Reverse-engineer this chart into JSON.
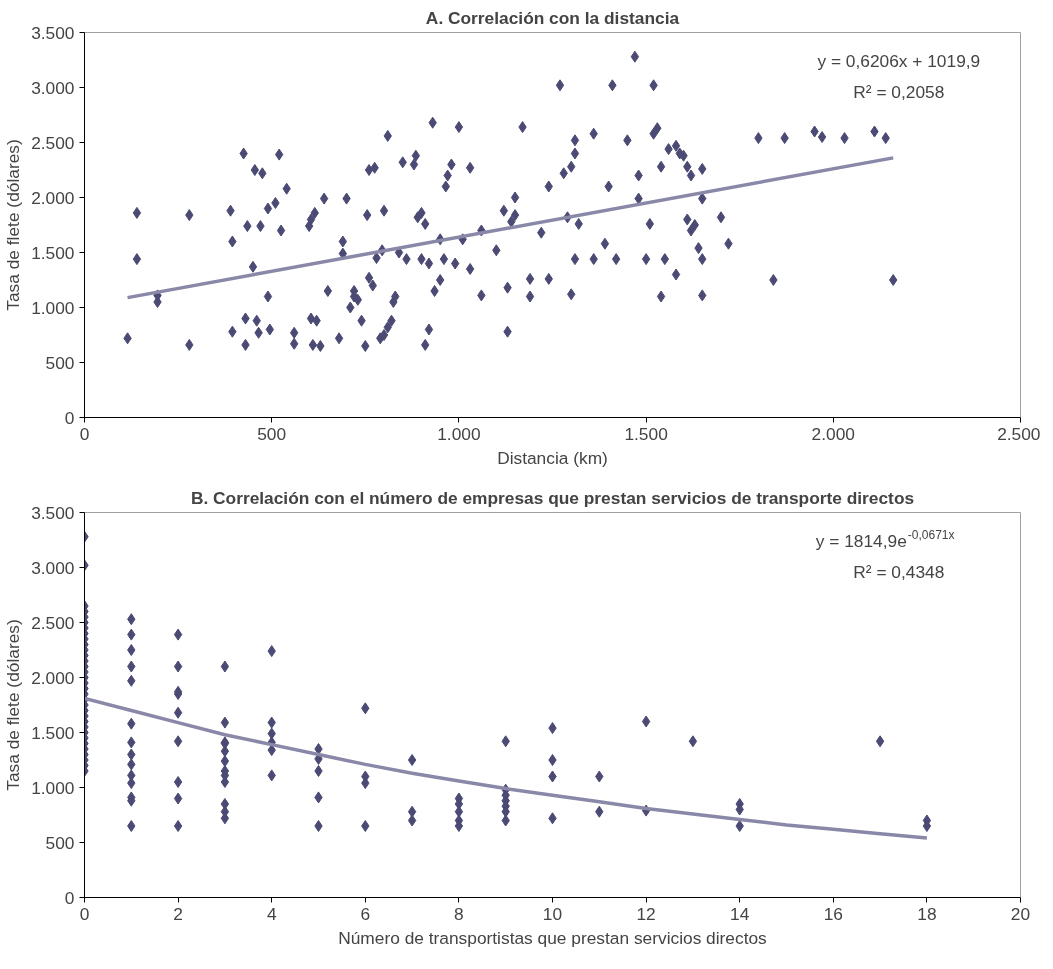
{
  "chart_data": [
    {
      "type": "scatter",
      "title": "A. Correlación con la distancia",
      "xlabel": "Distancia (km)",
      "ylabel": "Tasa de flete (dólares)",
      "xlim": [
        0,
        2500
      ],
      "xticks": [
        0,
        500,
        {
          "value": 1000,
          "label": "1.000"
        },
        {
          "value": 1500,
          "label": "1.500"
        },
        {
          "value": 2000,
          "label": "2.000"
        },
        {
          "value": 2500,
          "label": "2.500"
        }
      ],
      "ylim": [
        0,
        3500
      ],
      "yticks": [
        0,
        500,
        {
          "value": 1000,
          "label": "1.000"
        },
        {
          "value": 1500,
          "label": "1.500"
        },
        {
          "value": 2000,
          "label": "2.000"
        },
        {
          "value": 2500,
          "label": "2.500"
        },
        {
          "value": 3000,
          "label": "3.000"
        },
        {
          "value": 3500,
          "label": "3.500"
        }
      ],
      "grid": false,
      "annotations": [
        "y = 0,6206x + 1019,9",
        "R² = 0,2058"
      ],
      "series": [
        {
          "marker": "diamond",
          "color": "#4b4a74",
          "x": [
            115,
            140,
            140,
            195,
            195,
            280,
            280,
            390,
            395,
            395,
            425,
            430,
            430,
            435,
            450,
            455,
            460,
            465,
            470,
            475,
            490,
            490,
            495,
            510,
            520,
            525,
            540,
            560,
            560,
            600,
            605,
            605,
            610,
            615,
            620,
            630,
            640,
            650,
            680,
            690,
            690,
            700,
            710,
            720,
            720,
            730,
            740,
            750,
            755,
            760,
            760,
            770,
            775,
            780,
            790,
            795,
            800,
            800,
            810,
            810,
            820,
            825,
            830,
            840,
            850,
            860,
            880,
            885,
            890,
            900,
            900,
            910,
            910,
            920,
            920,
            930,
            935,
            950,
            950,
            960,
            965,
            970,
            980,
            990,
            1000,
            1010,
            1030,
            1030,
            1060,
            1060,
            1100,
            1120,
            1130,
            1130,
            1140,
            1150,
            1150,
            1170,
            1190,
            1190,
            1220,
            1240,
            1240,
            1270,
            1280,
            1290,
            1300,
            1300,
            1310,
            1310,
            1310,
            1320,
            1360,
            1360,
            1390,
            1400,
            1410,
            1420,
            1450,
            1470,
            1480,
            1480,
            1500,
            1510,
            1520,
            1520,
            1530,
            1540,
            1540,
            1550,
            1560,
            1580,
            1580,
            1590,
            1600,
            1610,
            1610,
            1620,
            1620,
            1630,
            1640,
            1650,
            1650,
            1650,
            1650,
            1700,
            1720,
            1800,
            1840,
            1870,
            1950,
            1970,
            2030,
            2110,
            2140,
            2160
          ],
          "values": [
            720,
            1860,
            1440,
            1050,
            1110,
            660,
            1840,
            1880,
            1600,
            780,
            2400,
            900,
            660,
            1740,
            1370,
            2250,
            880,
            770,
            1740,
            2220,
            1900,
            1100,
            800,
            1950,
            2390,
            1700,
            2080,
            770,
            670,
            1740,
            1800,
            900,
            660,
            1860,
            880,
            650,
            1990,
            1150,
            720,
            1600,
            1490,
            1990,
            1000,
            1150,
            1100,
            1070,
            880,
            650,
            1840,
            2250,
            1270,
            1200,
            2270,
            1450,
            720,
            1520,
            750,
            1880,
            820,
            2560,
            880,
            1050,
            1100,
            1500,
            2320,
            1440,
            2300,
            2380,
            1820,
            1440,
            1860,
            1760,
            660,
            1400,
            800,
            2680,
            1150,
            1620,
            1250,
            1440,
            2100,
            2200,
            2300,
            1400,
            2640,
            1620,
            1350,
            2270,
            1700,
            1110,
            1520,
            1880,
            1180,
            780,
            1780,
            2000,
            1840,
            2640,
            1100,
            1260,
            1680,
            2100,
            1260,
            3020,
            2220,
            1820,
            2280,
            1120,
            2400,
            2520,
            1440,
            1760,
            2580,
            1440,
            1580,
            2100,
            3020,
            1440,
            2520,
            3280,
            2200,
            1990,
            1440,
            1760,
            3020,
            2580,
            2630,
            1100,
            2280,
            1440,
            2440,
            1300,
            2470,
            2400,
            2380,
            1800,
            2280,
            2200,
            1700,
            1750,
            1540,
            2260,
            1990,
            1440,
            1110,
            1820,
            1580,
            2540,
            1250,
            2540,
            2600,
            2550,
            2540,
            2600,
            2540,
            1250
          ]
        },
        {
          "type": "line",
          "color": "#8a88a8",
          "x": [
            115,
            2160
          ],
          "values": [
            1090,
            2360
          ]
        }
      ]
    },
    {
      "type": "scatter",
      "title": "B. Correlación con el número de empresas que prestan servicios de transporte directos",
      "xlabel": "Número de transportistas que prestan servicios directos",
      "ylabel": "Tasa de flete (dólares)",
      "xlim": [
        0,
        20
      ],
      "xticks": [
        0,
        2,
        4,
        6,
        8,
        10,
        12,
        14,
        16,
        18,
        20
      ],
      "ylim": [
        0,
        3500
      ],
      "yticks": [
        0,
        500,
        {
          "value": 1000,
          "label": "1.000"
        },
        {
          "value": 1500,
          "label": "1.500"
        },
        {
          "value": 2000,
          "label": "2.000"
        },
        {
          "value": 2500,
          "label": "2.500"
        },
        {
          "value": 3000,
          "label": "3.000"
        },
        {
          "value": 3500,
          "label": "3.500"
        }
      ],
      "grid": false,
      "annotations": [
        "y = 1814,9e$^{-0,0671x}$",
        "R² = 0,4348"
      ],
      "series": [
        {
          "marker": "diamond",
          "color": "#4b4a74",
          "x": [
            0,
            0,
            0,
            0,
            0,
            0,
            0,
            0,
            0,
            0,
            0,
            0,
            0,
            0,
            0,
            0,
            0,
            0,
            0,
            0,
            0,
            0,
            0,
            0,
            0,
            0,
            0,
            0,
            0,
            0,
            0,
            0,
            0,
            1,
            1,
            1,
            1,
            1,
            1,
            1,
            1,
            1,
            1,
            1,
            1,
            1,
            1,
            2,
            2,
            2,
            2,
            2,
            2,
            2,
            2,
            2,
            3,
            3,
            3,
            3,
            3,
            3,
            3,
            3,
            3,
            3,
            3,
            3,
            4,
            4,
            4,
            4,
            4,
            4,
            5,
            5,
            5,
            5,
            5,
            6,
            6,
            6,
            6,
            7,
            7,
            7,
            8,
            8,
            8,
            8,
            8,
            9,
            9,
            9,
            9,
            9,
            9,
            9,
            10,
            10,
            10,
            10,
            11,
            11,
            12,
            12,
            13,
            14,
            14,
            14,
            17,
            18,
            18
          ],
          "values": [
            3280,
            3020,
            2650,
            2600,
            2550,
            2500,
            2450,
            2400,
            2350,
            2300,
            2250,
            2200,
            2150,
            2100,
            2050,
            2000,
            1950,
            1900,
            1850,
            1800,
            1750,
            1700,
            1650,
            1600,
            1550,
            1500,
            1450,
            1400,
            1350,
            1300,
            1250,
            1200,
            1150,
            2530,
            2390,
            2250,
            2100,
            1970,
            1580,
            1410,
            1300,
            1210,
            1110,
            1040,
            910,
            880,
            650,
            2390,
            2100,
            1870,
            1850,
            1420,
            1050,
            900,
            650,
            1680,
            2100,
            1590,
            1410,
            1330,
            1240,
            1150,
            1110,
            1050,
            850,
            780,
            720,
            1400,
            2240,
            1590,
            1490,
            1410,
            1340,
            1110,
            1350,
            1260,
            1150,
            910,
            650,
            1720,
            1100,
            1040,
            650,
            1250,
            780,
            700,
            900,
            850,
            780,
            700,
            650,
            1420,
            980,
            930,
            880,
            830,
            780,
            700,
            1540,
            1250,
            1100,
            720,
            1100,
            780,
            1600,
            790,
            1420,
            850,
            800,
            650,
            1420,
            700,
            650
          ]
        },
        {
          "type": "line",
          "color": "#8a88a8",
          "x": [
            0,
            1,
            2,
            3,
            4,
            5,
            6,
            7,
            8,
            9,
            10,
            11,
            12,
            13,
            14,
            15,
            16,
            17,
            18
          ],
          "values": [
            1810,
            1700,
            1590,
            1480,
            1390,
            1300,
            1210,
            1130,
            1060,
            990,
            930,
            870,
            810,
            760,
            710,
            660,
            620,
            580,
            540
          ]
        }
      ]
    }
  ]
}
